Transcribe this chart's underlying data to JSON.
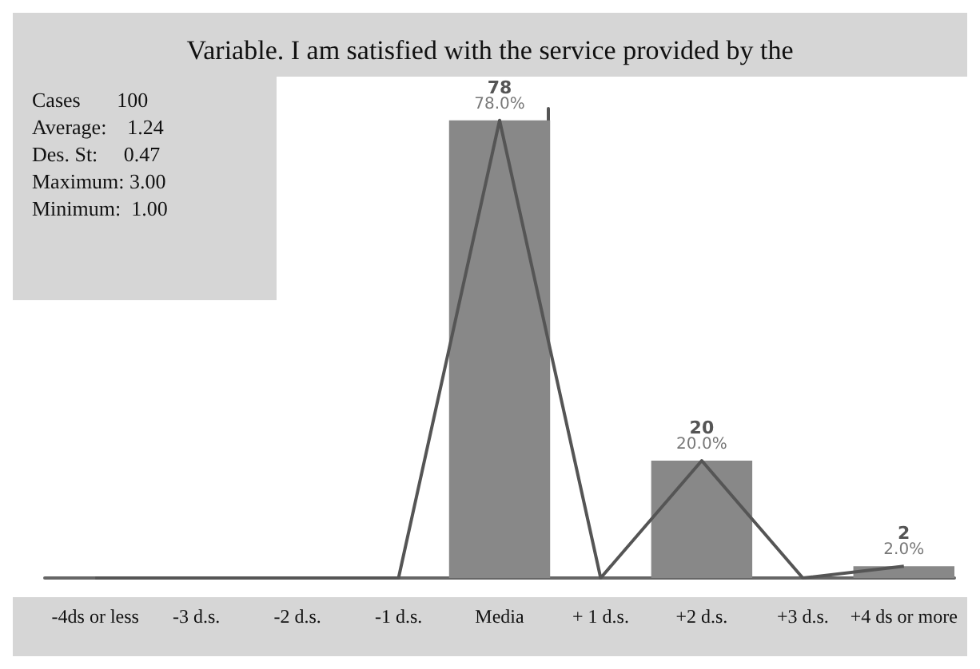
{
  "chart_data": {
    "type": "bar",
    "title": "Variable. I am satisfied with the service provided by the",
    "categories": [
      "-4ds or less",
      "-3 d.s.",
      "-2 d.s.",
      "-1 d.s.",
      "Media",
      "+ 1 d.s.",
      "+2 d.s.",
      "+3 d.s.",
      "+4 ds or more"
    ],
    "series": [
      {
        "color": "#888888",
        "values": [
          0,
          0,
          0,
          0,
          78,
          0,
          20,
          0,
          2
        ],
        "value_labels": [
          null,
          null,
          null,
          null,
          "78\n78.0%",
          null,
          "20\n20.0%",
          null,
          "2\n2.0%"
        ]
      },
      {
        "type": "line",
        "color": "#555555",
        "values": [
          0,
          0,
          0,
          0,
          78,
          0,
          20,
          0,
          2
        ],
        "marker": "none"
      }
    ],
    "ylim": [
      0,
      80
    ],
    "tick_labels": "x",
    "annotations": [
      "Cases       100",
      "Average:    1.24",
      "Des. St:     0.47",
      "Maximum: 3.00",
      "Minimum:  1.00"
    ]
  }
}
